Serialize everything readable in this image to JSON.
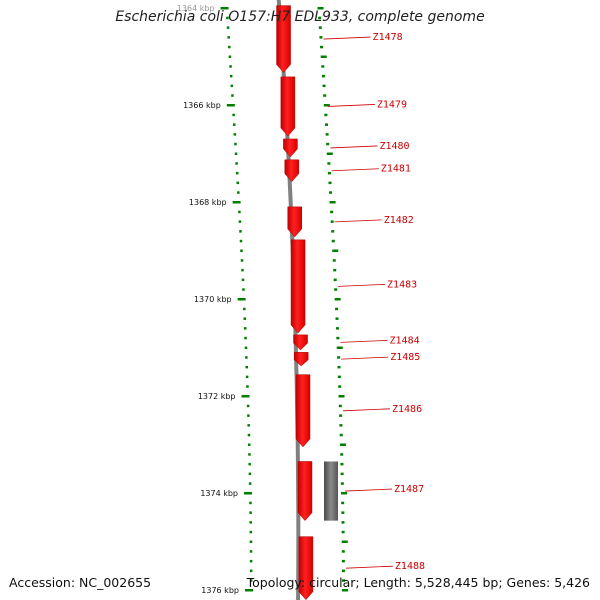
{
  "title": "Escherichia coli O157:H7 EDL933, complete genome",
  "footer": {
    "accession": "Accession: NC_002655",
    "topology": "Topology: circular; Length: 5,528,445 bp; Genes: 5,426"
  },
  "colors": {
    "gene": "#ff0000",
    "gene_dark": "#a80000",
    "label": "#cc0000",
    "tick": "#008000",
    "backbone": "#808080",
    "feature_gray": "#666666"
  },
  "view": {
    "start_kbp": 1364,
    "end_kbp": 1376
  },
  "ticks": [
    {
      "kbp": 1364,
      "label": "1364 kbp"
    },
    {
      "kbp": 1366,
      "label": "1366 kbp"
    },
    {
      "kbp": 1368,
      "label": "1368 kbp"
    },
    {
      "kbp": 1370,
      "label": "1370 kbp"
    },
    {
      "kbp": 1372,
      "label": "1372 kbp"
    },
    {
      "kbp": 1374,
      "label": "1374 kbp"
    },
    {
      "kbp": 1376,
      "label": "1376 kbp"
    }
  ],
  "genes": [
    {
      "name": "Z1478",
      "start_kbp": 1363.95,
      "end_kbp": 1365.33,
      "strand": "-"
    },
    {
      "name": "Z1479",
      "start_kbp": 1365.42,
      "end_kbp": 1366.64,
      "strand": "-"
    },
    {
      "name": "Z1480",
      "start_kbp": 1366.7,
      "end_kbp": 1367.07,
      "strand": "-"
    },
    {
      "name": "Z1481",
      "start_kbp": 1367.13,
      "end_kbp": 1367.58,
      "strand": "-"
    },
    {
      "name": "Z1482",
      "start_kbp": 1368.1,
      "end_kbp": 1368.72,
      "strand": "-"
    },
    {
      "name": "Z1483",
      "start_kbp": 1368.78,
      "end_kbp": 1370.7,
      "strand": "-"
    },
    {
      "name": "Z1484",
      "start_kbp": 1370.74,
      "end_kbp": 1371.05,
      "strand": "-"
    },
    {
      "name": "Z1485",
      "start_kbp": 1371.1,
      "end_kbp": 1371.38,
      "strand": "-"
    },
    {
      "name": "Z1486",
      "start_kbp": 1371.56,
      "end_kbp": 1373.05,
      "strand": "-"
    },
    {
      "name": "Z1487",
      "start_kbp": 1373.35,
      "end_kbp": 1374.57,
      "strand": "-"
    },
    {
      "name": "Z1488",
      "start_kbp": 1374.9,
      "end_kbp": 1376.2,
      "strand": "-"
    }
  ],
  "other_features": [
    {
      "type": "gray-feature",
      "start_kbp": 1373.35,
      "end_kbp": 1374.57
    }
  ]
}
